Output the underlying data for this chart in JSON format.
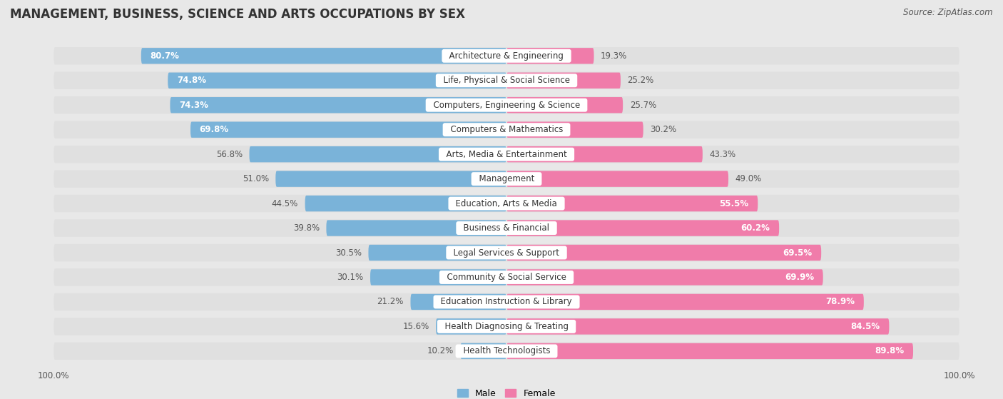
{
  "title": "MANAGEMENT, BUSINESS, SCIENCE AND ARTS OCCUPATIONS BY SEX",
  "source": "Source: ZipAtlas.com",
  "categories": [
    "Architecture & Engineering",
    "Life, Physical & Social Science",
    "Computers, Engineering & Science",
    "Computers & Mathematics",
    "Arts, Media & Entertainment",
    "Management",
    "Education, Arts & Media",
    "Business & Financial",
    "Legal Services & Support",
    "Community & Social Service",
    "Education Instruction & Library",
    "Health Diagnosing & Treating",
    "Health Technologists"
  ],
  "male": [
    80.7,
    74.8,
    74.3,
    69.8,
    56.8,
    51.0,
    44.5,
    39.8,
    30.5,
    30.1,
    21.2,
    15.6,
    10.2
  ],
  "female": [
    19.3,
    25.2,
    25.7,
    30.2,
    43.3,
    49.0,
    55.5,
    60.2,
    69.5,
    69.9,
    78.9,
    84.5,
    89.8
  ],
  "male_color": "#7ab3d9",
  "female_color": "#f07caa",
  "male_label": "Male",
  "female_label": "Female",
  "bg_color": "#e8e8e8",
  "row_bg_color": "#f0f0f0",
  "title_fontsize": 12,
  "label_fontsize": 8.5,
  "value_fontsize": 8.5,
  "source_fontsize": 8.5,
  "male_text_threshold": 60.0,
  "female_text_threshold": 55.0
}
